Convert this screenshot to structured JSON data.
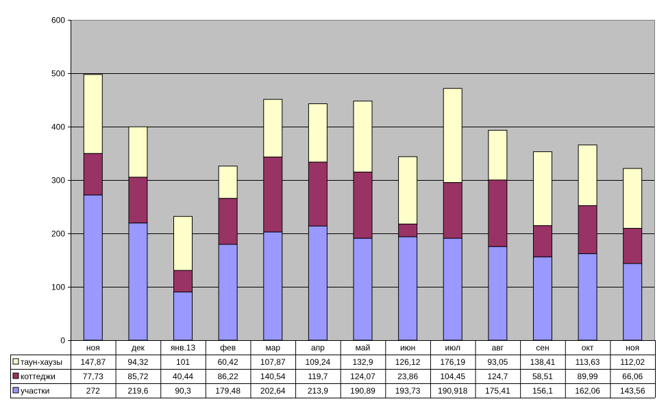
{
  "chart_data": {
    "type": "bar",
    "stacked": true,
    "categories": [
      "ноя",
      "дек",
      "янв.13",
      "фев",
      "мар",
      "апр",
      "май",
      "июн",
      "июл",
      "авг",
      "сен",
      "окт",
      "ноя"
    ],
    "series": [
      {
        "name": "участки",
        "color": "#9999ff",
        "values": [
          272,
          219.6,
          90.3,
          179.48,
          202.64,
          213.9,
          190.89,
          193.73,
          190.918,
          175.41,
          156.1,
          162.06,
          143.56
        ],
        "labels": [
          "272",
          "219,6",
          "90,3",
          "179,48",
          "202,64",
          "213,9",
          "190,89",
          "193,73",
          "190,918",
          "175,41",
          "156,1",
          "162,06",
          "143,56"
        ]
      },
      {
        "name": "коттеджи",
        "color": "#993366",
        "values": [
          77.73,
          85.72,
          40.44,
          86.22,
          140.54,
          119.7,
          124.07,
          23.86,
          104.45,
          124.7,
          58.51,
          89.99,
          66.06
        ],
        "labels": [
          "77,73",
          "85,72",
          "40,44",
          "86,22",
          "140,54",
          "119,7",
          "124,07",
          "23,86",
          "104,45",
          "124,7",
          "58,51",
          "89,99",
          "66,06"
        ]
      },
      {
        "name": "таун-хаузы",
        "color": "#ffffcc",
        "values": [
          147.87,
          94.32,
          101,
          60.42,
          107.87,
          109.24,
          132.9,
          126.12,
          176.19,
          93.05,
          138.41,
          113.63,
          112.02
        ],
        "labels": [
          "147,87",
          "94,32",
          "101",
          "60,42",
          "107,87",
          "109,24",
          "132,9",
          "126,12",
          "176,19",
          "93,05",
          "138,41",
          "113,63",
          "112,02"
        ]
      }
    ],
    "table_row_order": [
      "таун-хаузы",
      "коттеджи",
      "участки"
    ],
    "y_ticks": [
      "0",
      "100",
      "200",
      "300",
      "400",
      "500",
      "600"
    ],
    "ylim": [
      0,
      600
    ],
    "plot_background": "#c0c0c0",
    "grid": true,
    "legend": "data-table"
  }
}
